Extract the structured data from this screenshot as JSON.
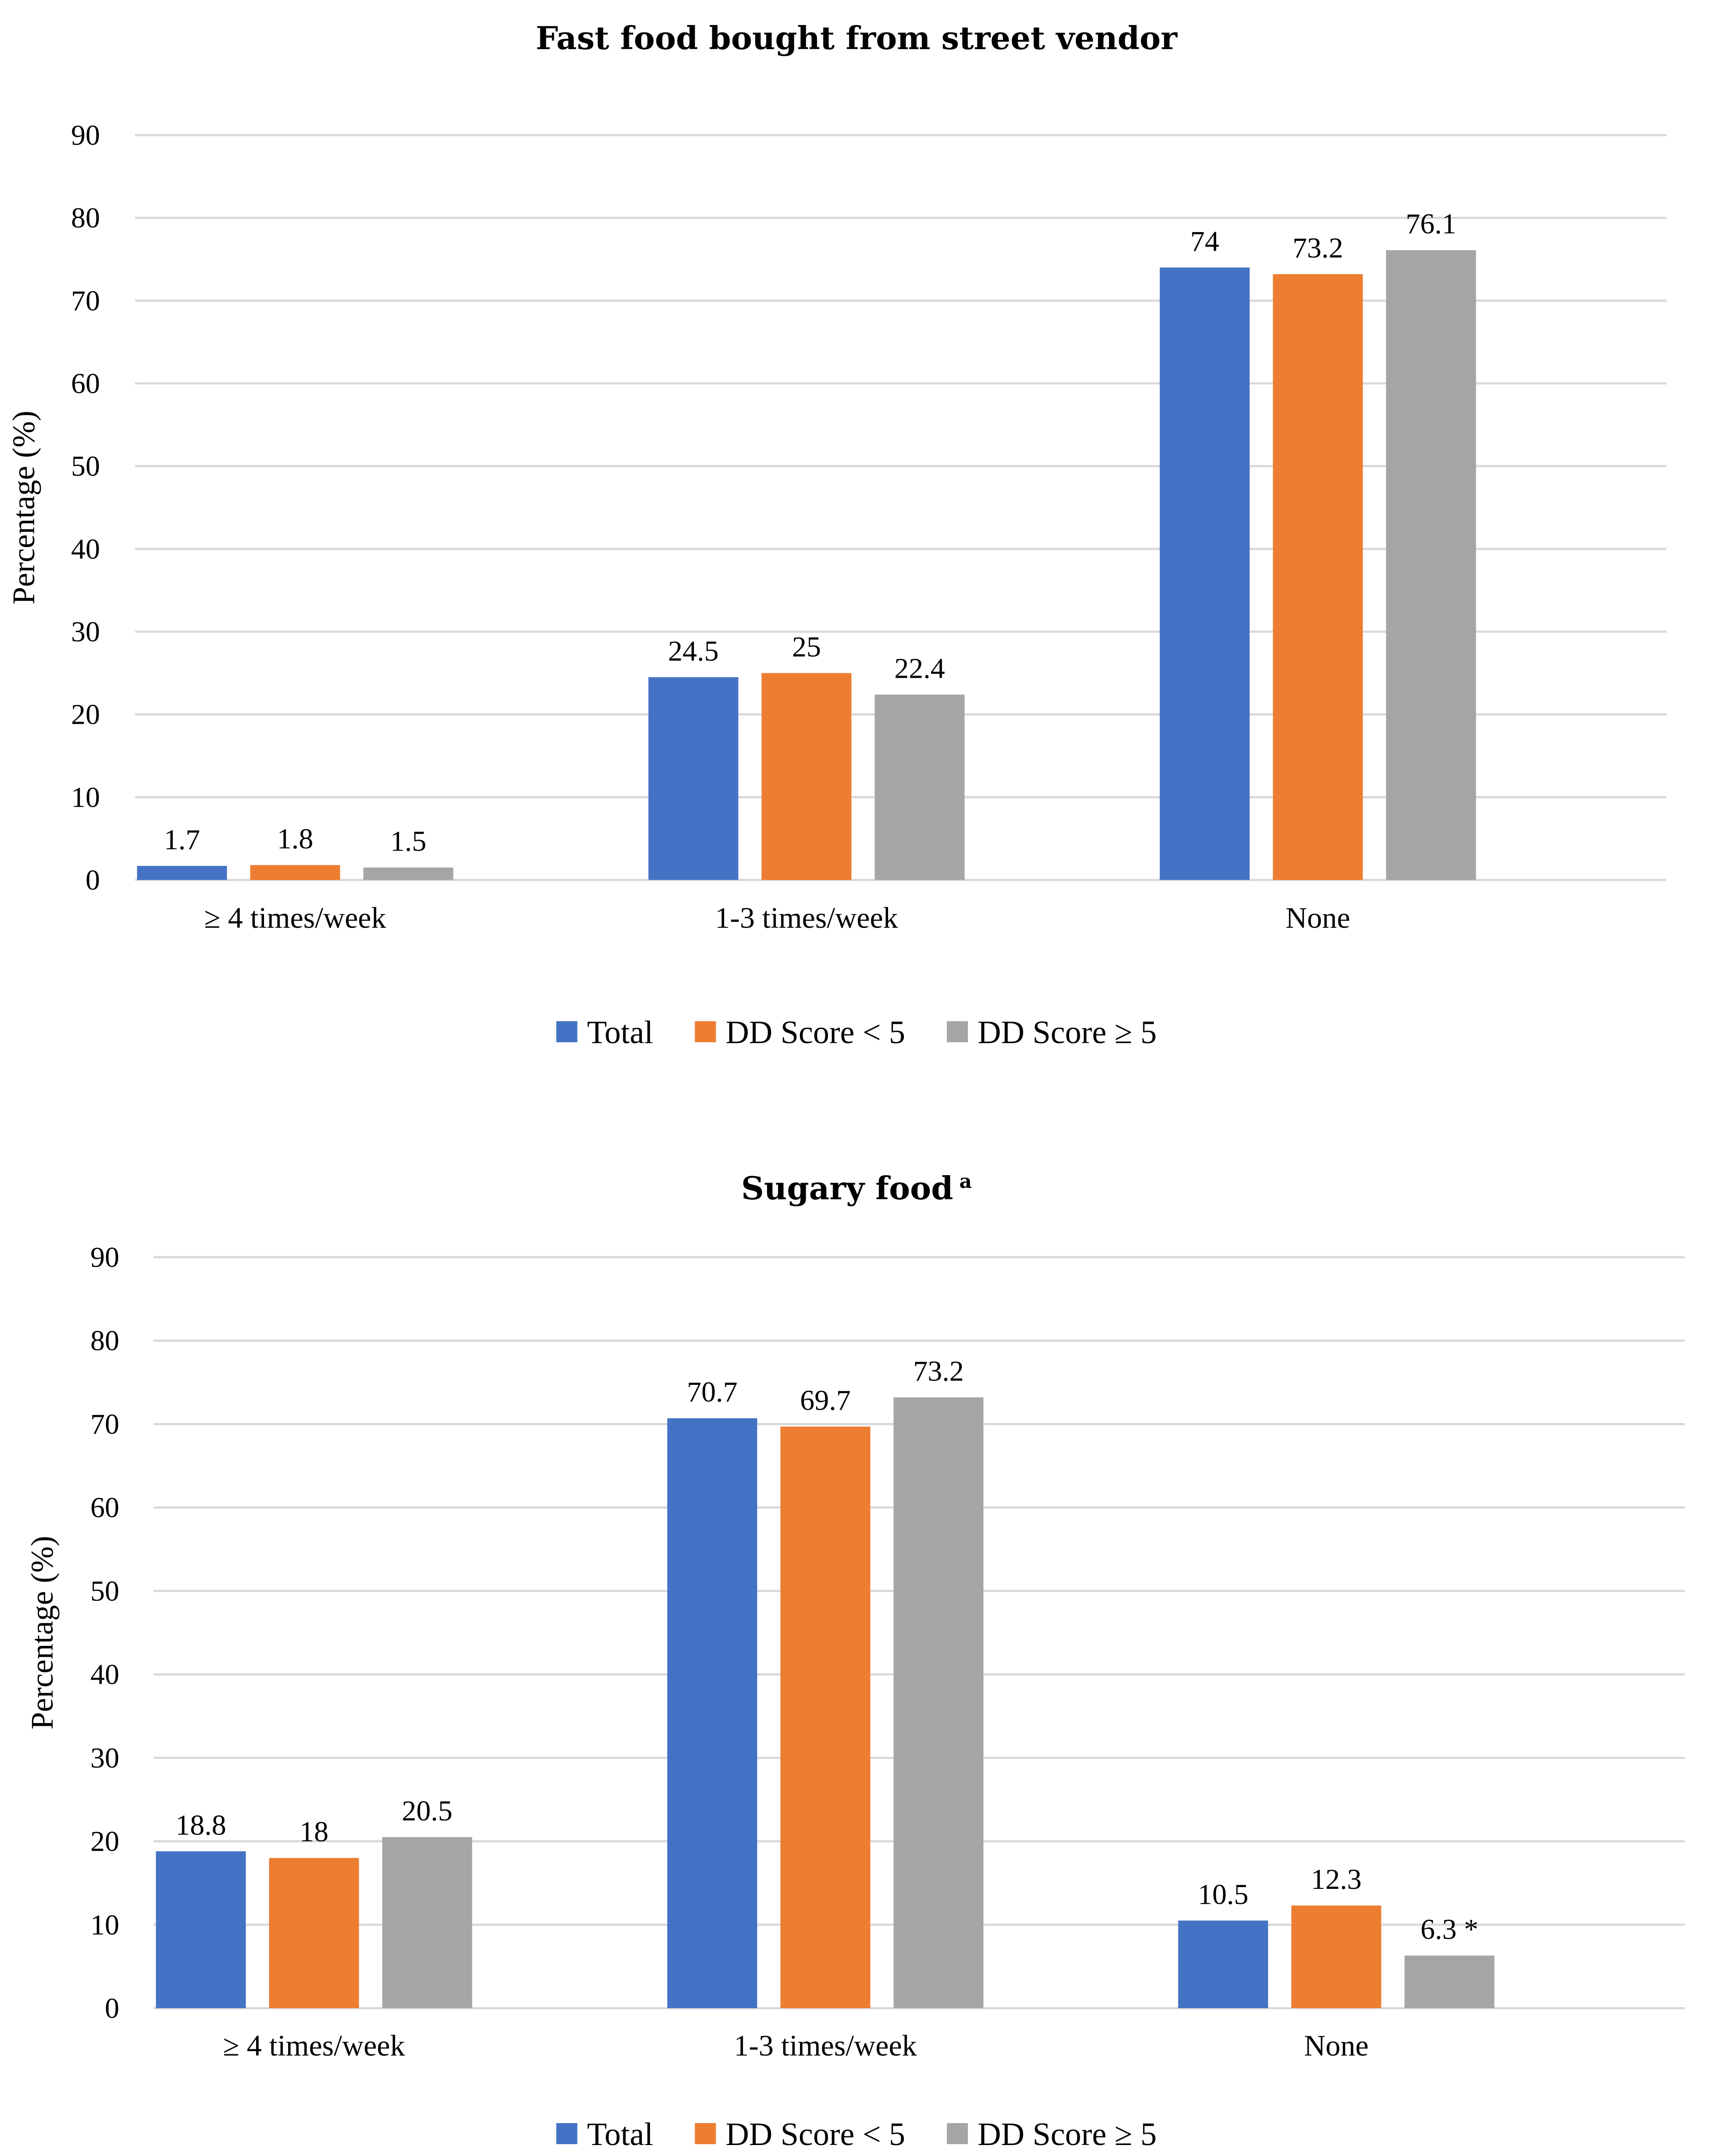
{
  "chart_data": [
    {
      "type": "bar",
      "title": "Fast food bought from street vendor",
      "title_superscript": "",
      "xlabel": "",
      "ylabel": "Percentage (%)",
      "ylim": [
        0,
        90
      ],
      "yticks": [
        0,
        10,
        20,
        30,
        40,
        50,
        60,
        70,
        80,
        90
      ],
      "grid": true,
      "legend_position": "bottom",
      "categories": [
        "≥ 4 times/week",
        "1-3 times/week",
        "None"
      ],
      "series": [
        {
          "name": "Total",
          "color": "#4472C4",
          "values": [
            1.7,
            24.5,
            74
          ],
          "labels": [
            "1.7",
            "24.5",
            "74"
          ]
        },
        {
          "name": "DD Score < 5",
          "color": "#ED7D31",
          "values": [
            1.8,
            25,
            73.2
          ],
          "labels": [
            "1.8",
            "25",
            "73.2"
          ]
        },
        {
          "name": "DD Score ≥ 5",
          "color": "#A5A5A5",
          "values": [
            1.5,
            22.4,
            76.1
          ],
          "labels": [
            "1.5",
            "22.4",
            "76.1"
          ]
        }
      ]
    },
    {
      "type": "bar",
      "title": "Sugary food",
      "title_superscript": "a",
      "xlabel": "",
      "ylabel": "Percentage (%)",
      "ylim": [
        0,
        90
      ],
      "yticks": [
        0,
        10,
        20,
        30,
        40,
        50,
        60,
        70,
        80,
        90
      ],
      "grid": true,
      "legend_position": "bottom",
      "categories": [
        "≥ 4 times/week",
        "1-3 times/week",
        "None"
      ],
      "series": [
        {
          "name": "Total",
          "color": "#4472C4",
          "values": [
            18.8,
            70.7,
            10.5
          ],
          "labels": [
            "18.8",
            "70.7",
            "10.5"
          ]
        },
        {
          "name": "DD Score < 5",
          "color": "#ED7D31",
          "values": [
            18,
            69.7,
            12.3
          ],
          "labels": [
            "18",
            "69.7",
            "12.3"
          ]
        },
        {
          "name": "DD Score ≥ 5",
          "color": "#A5A5A5",
          "values": [
            20.5,
            73.2,
            6.3
          ],
          "labels": [
            "20.5",
            "73.2",
            "6.3 *"
          ]
        }
      ]
    }
  ]
}
